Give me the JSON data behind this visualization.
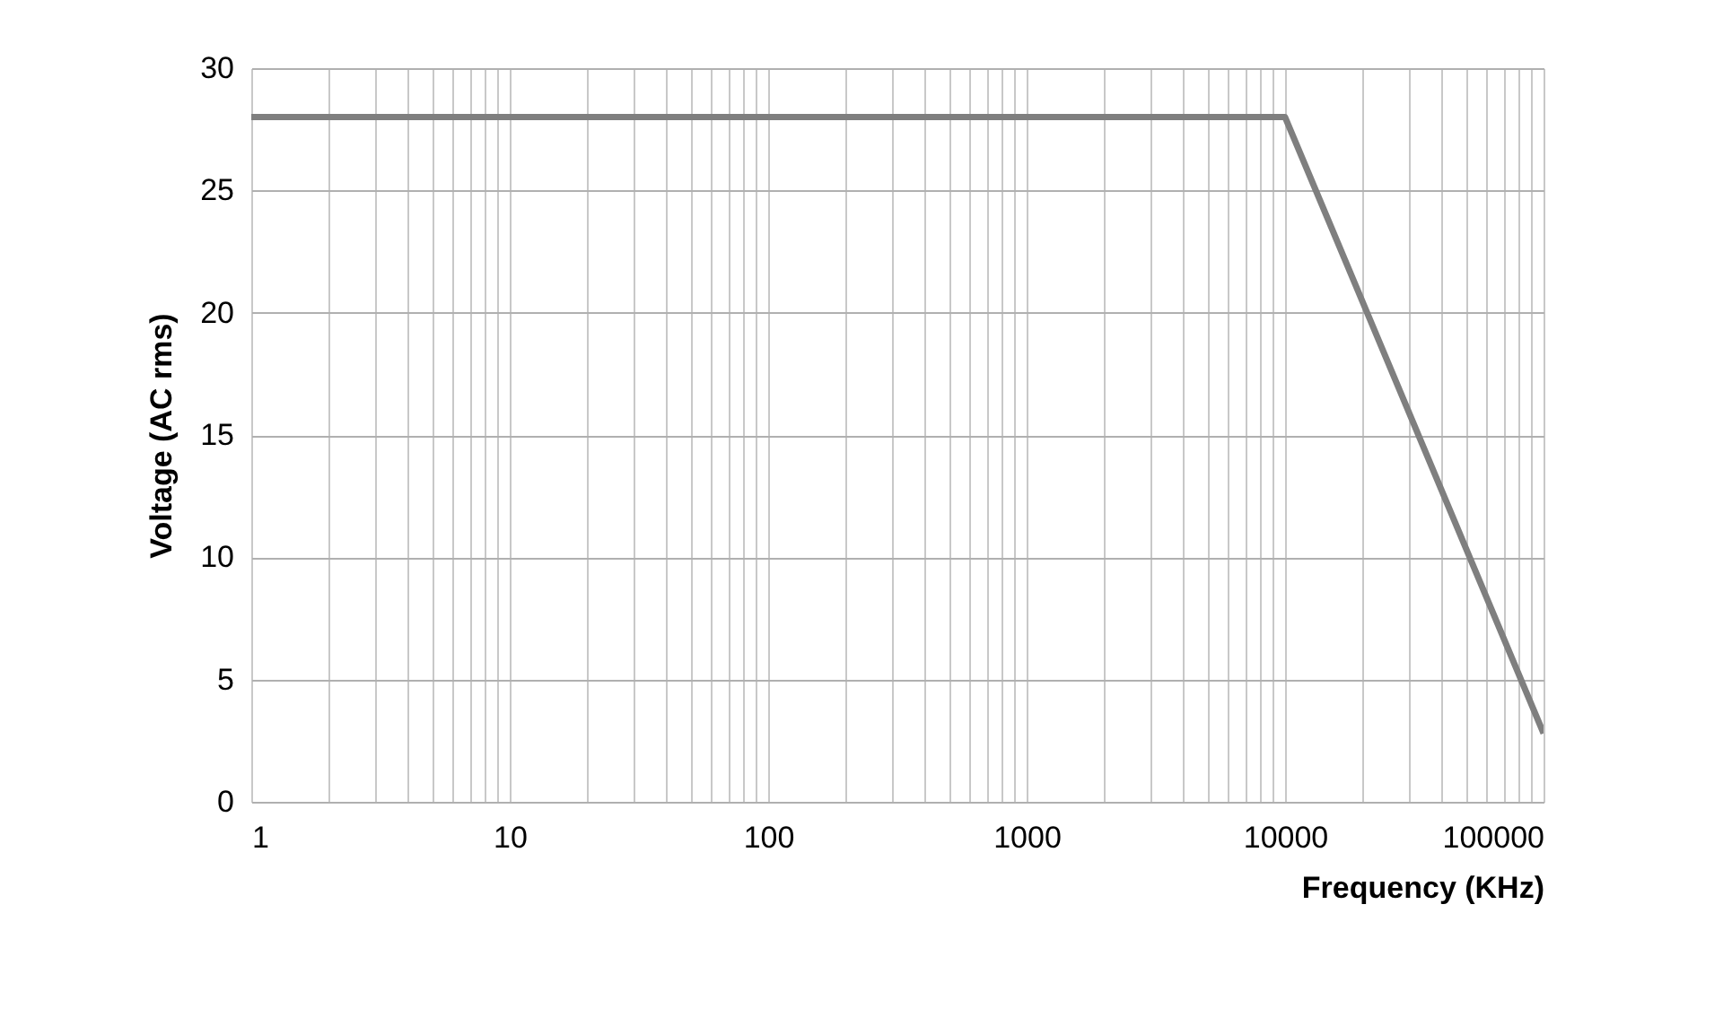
{
  "chart_data": {
    "type": "line",
    "xlabel": "Frequency (KHz)",
    "ylabel": "Voltage (AC rms)",
    "x": [
      1,
      10000,
      100000
    ],
    "series": [
      {
        "color": "#7f7f7f",
        "values": [
          28,
          28,
          2.8
        ]
      }
    ],
    "log": "x",
    "xlim": [
      1,
      100000
    ],
    "ylim": [
      0,
      30
    ],
    "xticks": [
      1,
      {
        "value": 2,
        "label": null
      },
      {
        "value": 3,
        "label": null
      },
      {
        "value": 4,
        "label": null
      },
      {
        "value": 5,
        "label": null
      },
      {
        "value": 6,
        "label": null
      },
      {
        "value": 7,
        "label": null
      },
      {
        "value": 8,
        "label": null
      },
      {
        "value": 9,
        "label": null
      },
      10,
      {
        "value": 20,
        "label": null
      },
      {
        "value": 30,
        "label": null
      },
      {
        "value": 40,
        "label": null
      },
      {
        "value": 50,
        "label": null
      },
      {
        "value": 60,
        "label": null
      },
      {
        "value": 70,
        "label": null
      },
      {
        "value": 80,
        "label": null
      },
      {
        "value": 90,
        "label": null
      },
      100,
      {
        "value": 200,
        "label": null
      },
      {
        "value": 300,
        "label": null
      },
      {
        "value": 400,
        "label": null
      },
      {
        "value": 500,
        "label": null
      },
      {
        "value": 600,
        "label": null
      },
      {
        "value": 700,
        "label": null
      },
      {
        "value": 800,
        "label": null
      },
      {
        "value": 900,
        "label": null
      },
      1000,
      {
        "value": 2000,
        "label": null
      },
      {
        "value": 3000,
        "label": null
      },
      {
        "value": 4000,
        "label": null
      },
      {
        "value": 5000,
        "label": null
      },
      {
        "value": 6000,
        "label": null
      },
      {
        "value": 7000,
        "label": null
      },
      {
        "value": 8000,
        "label": null
      },
      {
        "value": 9000,
        "label": null
      },
      10000,
      {
        "value": 20000,
        "label": null
      },
      {
        "value": 30000,
        "label": null
      },
      {
        "value": 40000,
        "label": null
      },
      {
        "value": 50000,
        "label": null
      },
      {
        "value": 60000,
        "label": null
      },
      {
        "value": 70000,
        "label": null
      },
      {
        "value": 80000,
        "label": null
      },
      {
        "value": 90000,
        "label": null
      },
      100000
    ],
    "yticks": [
      0,
      5,
      10,
      15,
      20,
      25,
      30
    ],
    "grid": true,
    "line_style": "solid"
  }
}
